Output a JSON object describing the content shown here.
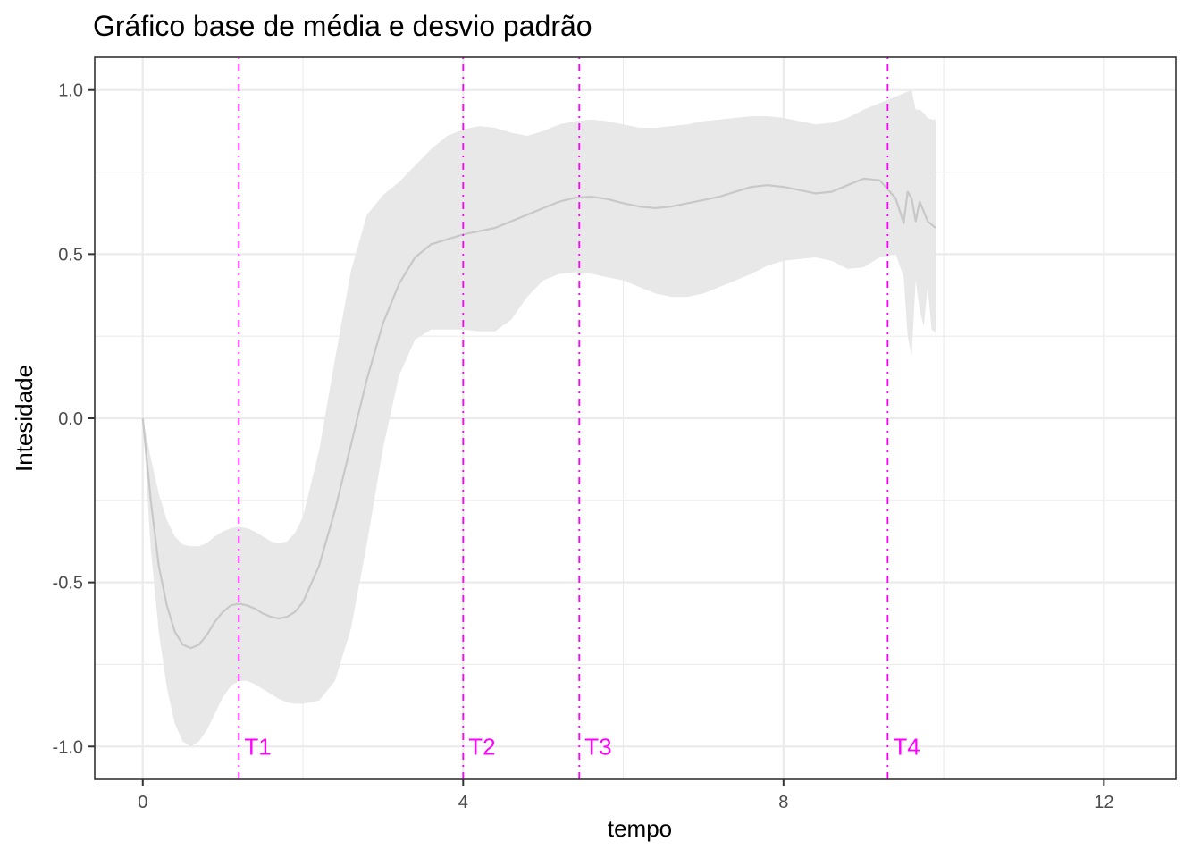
{
  "chart_data": {
    "type": "line",
    "title": "Gráfico base de média e desvio padrão",
    "xlabel": "tempo",
    "ylabel": "Intesidade",
    "xlim": [
      -0.6,
      12.9
    ],
    "ylim": [
      -1.1,
      1.1
    ],
    "x_ticks": [
      0,
      4,
      8,
      12
    ],
    "x_tick_labels": [
      "0",
      "4",
      "8",
      "12"
    ],
    "y_ticks": [
      -1.0,
      -0.5,
      0.0,
      0.5,
      1.0
    ],
    "y_tick_labels": [
      "-1.0",
      "-0.5",
      "0.0",
      "0.5",
      "1.0"
    ],
    "grid": true,
    "colors": {
      "mean_line": "#c8c8c8",
      "ribbon": "#e8e8e8",
      "vlines": "#ff00ff"
    },
    "series": [
      {
        "x": [
          0.0,
          0.1,
          0.2,
          0.3,
          0.4,
          0.5,
          0.6,
          0.7,
          0.8,
          0.9,
          1.0,
          1.1,
          1.2,
          1.3,
          1.4,
          1.5,
          1.6,
          1.7,
          1.8,
          1.9,
          2.0,
          2.2,
          2.4,
          2.6,
          2.8,
          3.0,
          3.2,
          3.4,
          3.6,
          3.8,
          4.0,
          4.2,
          4.4,
          4.6,
          4.8,
          5.0,
          5.2,
          5.4,
          5.6,
          5.8,
          6.0,
          6.2,
          6.4,
          6.6,
          6.8,
          7.0,
          7.2,
          7.4,
          7.6,
          7.8,
          8.0,
          8.2,
          8.4,
          8.6,
          8.8,
          9.0,
          9.2,
          9.4,
          9.5,
          9.55,
          9.6,
          9.65,
          9.7,
          9.75,
          9.8,
          9.85,
          9.9
        ],
        "mean": [
          0.0,
          -0.25,
          -0.45,
          -0.57,
          -0.65,
          -0.69,
          -0.7,
          -0.69,
          -0.66,
          -0.62,
          -0.59,
          -0.57,
          -0.565,
          -0.57,
          -0.58,
          -0.595,
          -0.605,
          -0.61,
          -0.605,
          -0.59,
          -0.56,
          -0.45,
          -0.28,
          -0.08,
          0.12,
          0.29,
          0.41,
          0.49,
          0.53,
          0.545,
          0.56,
          0.57,
          0.58,
          0.6,
          0.62,
          0.64,
          0.66,
          0.672,
          0.675,
          0.668,
          0.655,
          0.645,
          0.64,
          0.645,
          0.655,
          0.665,
          0.675,
          0.69,
          0.705,
          0.71,
          0.705,
          0.695,
          0.685,
          0.69,
          0.71,
          0.73,
          0.725,
          0.67,
          0.595,
          0.69,
          0.67,
          0.6,
          0.66,
          0.63,
          0.6,
          0.59,
          0.58
        ],
        "upper": [
          0.0,
          -0.12,
          -0.23,
          -0.31,
          -0.36,
          -0.385,
          -0.39,
          -0.39,
          -0.38,
          -0.36,
          -0.345,
          -0.335,
          -0.33,
          -0.335,
          -0.345,
          -0.36,
          -0.375,
          -0.38,
          -0.375,
          -0.35,
          -0.3,
          -0.1,
          0.18,
          0.45,
          0.62,
          0.68,
          0.72,
          0.77,
          0.82,
          0.86,
          0.88,
          0.89,
          0.885,
          0.87,
          0.86,
          0.875,
          0.895,
          0.905,
          0.91,
          0.905,
          0.895,
          0.885,
          0.885,
          0.89,
          0.895,
          0.905,
          0.91,
          0.915,
          0.92,
          0.92,
          0.915,
          0.905,
          0.895,
          0.9,
          0.915,
          0.94,
          0.96,
          0.98,
          0.99,
          0.995,
          1.0,
          0.94,
          0.94,
          0.93,
          0.915,
          0.91,
          0.91
        ],
        "lower": [
          0.0,
          -0.4,
          -0.65,
          -0.82,
          -0.93,
          -0.985,
          -1.0,
          -0.985,
          -0.95,
          -0.9,
          -0.85,
          -0.815,
          -0.8,
          -0.8,
          -0.81,
          -0.825,
          -0.84,
          -0.855,
          -0.865,
          -0.87,
          -0.87,
          -0.86,
          -0.8,
          -0.64,
          -0.38,
          -0.09,
          0.13,
          0.24,
          0.27,
          0.27,
          0.27,
          0.265,
          0.265,
          0.3,
          0.37,
          0.42,
          0.44,
          0.445,
          0.44,
          0.43,
          0.42,
          0.4,
          0.38,
          0.37,
          0.37,
          0.38,
          0.4,
          0.42,
          0.44,
          0.465,
          0.48,
          0.485,
          0.49,
          0.48,
          0.455,
          0.46,
          0.49,
          0.5,
          0.43,
          0.25,
          0.19,
          0.42,
          0.33,
          0.28,
          0.4,
          0.27,
          0.26
        ]
      }
    ],
    "vlines": [
      {
        "x": 1.2,
        "label": "T1"
      },
      {
        "x": 4.0,
        "label": "T2"
      },
      {
        "x": 5.45,
        "label": "T3"
      },
      {
        "x": 9.3,
        "label": "T4"
      }
    ],
    "vline_label_y": -1.0
  }
}
